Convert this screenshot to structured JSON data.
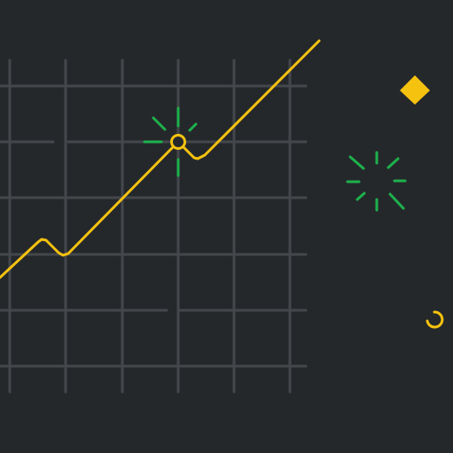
{
  "background": "#25282b",
  "colors": {
    "grid": "#44474b",
    "line": "#f5c20f",
    "sparkle": "#1db14c",
    "accent": "#f5c20f"
  },
  "icons": {
    "grid": "grid-lines-icon",
    "trend_line": "trend-line-icon",
    "highlight_point": "circle-marker-icon",
    "sparkle_on_point": "sparkle-burst-icon",
    "sparkle_floating": "sparkle-burst-icon",
    "diamond": "diamond-icon",
    "refresh": "refresh-arc-icon"
  }
}
